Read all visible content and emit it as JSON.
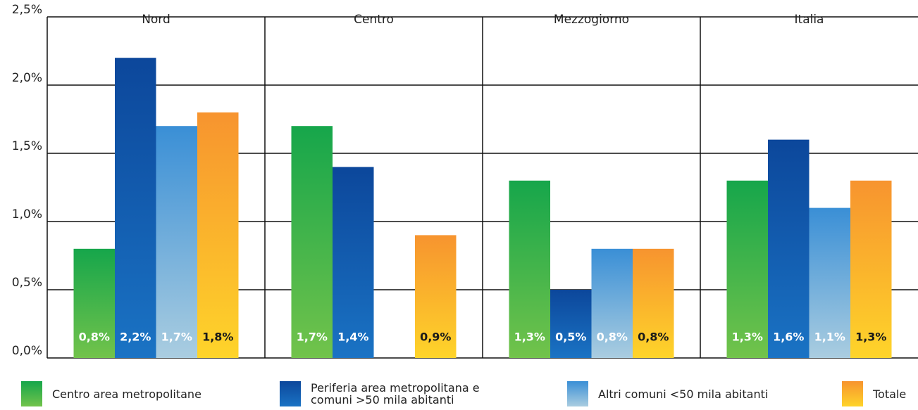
{
  "chart_data": {
    "type": "bar",
    "categories": [
      "Nord",
      "Centro",
      "Mezzogiorno",
      "Italia"
    ],
    "series": [
      {
        "name": "Centro area metropolitane",
        "color": "#16a64b",
        "gradient_to": "#72c34b",
        "label_color": "#ffffff",
        "values": [
          0.8,
          1.7,
          1.3,
          1.3
        ],
        "value_labels": [
          "0,8%",
          "1,7%",
          "1,3%",
          "1,3%"
        ]
      },
      {
        "name": "Periferia area metropolitana e comuni >50 mila abitanti",
        "color": "#0c479b",
        "gradient_to": "#1a73c4",
        "label_color": "#ffffff",
        "values": [
          2.2,
          1.4,
          0.5,
          1.6
        ],
        "value_labels": [
          "2,2%",
          "1,4%",
          "0,5%",
          "1,6%"
        ]
      },
      {
        "name": "Altri comuni <50 mila abitanti",
        "color": "#3a8fd6",
        "gradient_to": "#aacde0",
        "label_color": "#ffffff",
        "values": [
          1.7,
          null,
          0.8,
          1.1
        ],
        "value_labels": [
          "1,7%",
          null,
          "0,8%",
          "1,1%"
        ]
      },
      {
        "name": "Totale",
        "color": "#f7942f",
        "gradient_to": "#fed42a",
        "label_color": "#1a1a1a",
        "values": [
          1.8,
          0.9,
          0.8,
          1.3
        ],
        "value_labels": [
          "1,8%",
          "0,9%",
          "0,8%",
          "1,3%"
        ]
      }
    ],
    "ylim": [
      0,
      2.5
    ],
    "yticks": [
      {
        "value": 0,
        "label": "0,0%"
      },
      {
        "value": 0.5,
        "label": "0,5%"
      },
      {
        "value": 1,
        "label": "1,0%"
      },
      {
        "value": 1.5,
        "label": "1,5%"
      },
      {
        "value": 2,
        "label": "2,0%"
      },
      {
        "value": 2.5,
        "label": "2,5%"
      }
    ],
    "grid": true
  }
}
